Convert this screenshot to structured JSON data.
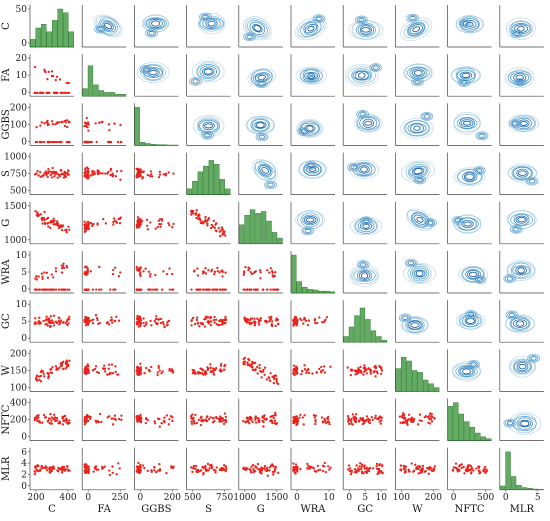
{
  "chart_data": {
    "type": "scatter",
    "title": "",
    "layout": "pair-plot",
    "variables": [
      "C",
      "FA",
      "GGBS",
      "S",
      "G",
      "WRA",
      "GC",
      "W",
      "NFTC",
      "MLR"
    ],
    "lower_triangle": "scatter",
    "diagonal": "histogram",
    "upper_triangle": "kde-contour",
    "colors": {
      "scatter": "#e8231c",
      "histogram": "#2f8f2f",
      "contour": "#2f6ea8"
    },
    "y_ticks": {
      "C": [
        "0",
        "50"
      ],
      "FA": [
        "0",
        "10",
        "20"
      ],
      "GGBS": [
        "0",
        "100",
        "200"
      ],
      "S": [
        "500",
        "750",
        "1000"
      ],
      "G": [
        "1000",
        "1500"
      ],
      "WRA": [
        "0",
        "5",
        "10"
      ],
      "GC": [
        "0",
        "5",
        "10"
      ],
      "W": [
        "100",
        "150",
        "200"
      ],
      "NFTC": [
        "0",
        "200",
        "400"
      ],
      "MLR": [
        "0",
        "2",
        "4",
        "6"
      ]
    },
    "x_ticks": {
      "C": [
        "200",
        "400"
      ],
      "FA": [
        "0",
        "250"
      ],
      "GGBS": [
        "0",
        "200"
      ],
      "S": [
        "500",
        "750"
      ],
      "G": [
        "1000",
        "1500"
      ],
      "WRA": [
        "0",
        "10"
      ],
      "GC": [
        "0",
        "5",
        "10"
      ],
      "W": [
        "100",
        "200"
      ],
      "NFTC": [
        "0",
        "500"
      ],
      "MLR": [
        "0",
        "5"
      ]
    },
    "ranges": {
      "C": [
        80,
        460
      ],
      "FA": [
        -20,
        300
      ],
      "GGBS": [
        -20,
        240
      ],
      "S": [
        450,
        1050
      ],
      "G": [
        800,
        1700
      ],
      "WRA": [
        -1,
        12
      ],
      "GC": [
        -1,
        11
      ],
      "W": [
        60,
        220
      ],
      "NFTC": [
        -40,
        560
      ],
      "MLR": [
        -1,
        7
      ]
    },
    "diag_hist": {
      "C": [
        0.2,
        0.5,
        0.6,
        0.4,
        0.7,
        1.0,
        0.9,
        0.4
      ],
      "FA": [
        0.2,
        0.8,
        0.3,
        0.15,
        0.1,
        0.1,
        0.05,
        0.05
      ],
      "GGBS": [
        1.0,
        0.08,
        0.05,
        0.03,
        0.02,
        0.02,
        0.01,
        0.01
      ],
      "S": [
        0.15,
        0.35,
        0.6,
        0.75,
        0.9,
        0.8,
        0.4,
        0.15
      ],
      "G": [
        0.5,
        0.75,
        0.9,
        0.8,
        0.85,
        0.6,
        0.3,
        0.15
      ],
      "WRA": [
        1.0,
        0.3,
        0.15,
        0.1,
        0.08,
        0.05,
        0.05,
        0.03
      ],
      "GC": [
        0.15,
        0.4,
        0.7,
        0.9,
        0.6,
        0.3,
        0.15,
        0.05
      ],
      "W": [
        0.6,
        0.9,
        0.8,
        0.55,
        0.5,
        0.3,
        0.2,
        0.1
      ],
      "NFTC": [
        0.9,
        1.0,
        0.7,
        0.5,
        0.35,
        0.2,
        0.1,
        0.05
      ],
      "MLR": [
        0.1,
        1.0,
        0.35,
        0.12,
        0.06,
        0.04,
        0.02,
        0.01
      ]
    }
  }
}
